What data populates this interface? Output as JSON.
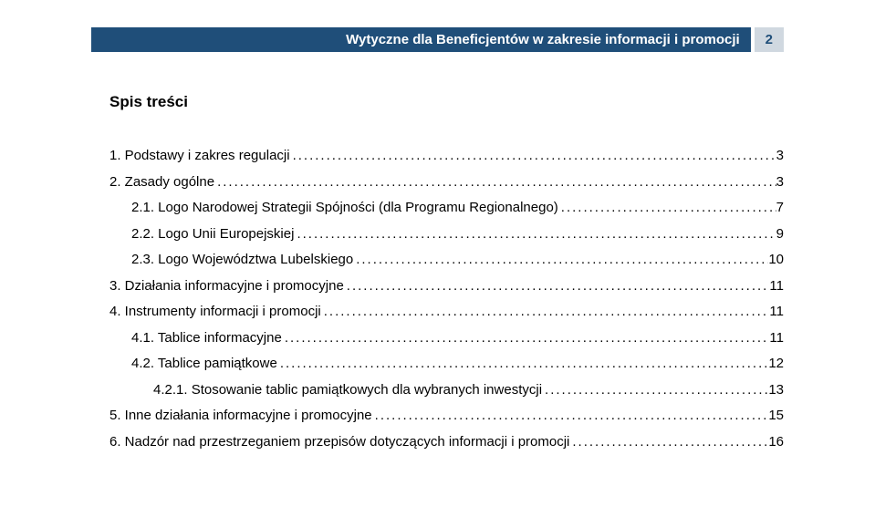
{
  "header": {
    "title": "Wytyczne dla Beneficjentów w zakresie informacji i promocji",
    "page_number": "2",
    "bar_bg": "#1f4e79",
    "bar_text_color": "#ffffff",
    "page_bg": "#d0d8e0",
    "page_text_color": "#1f4e79"
  },
  "toc": {
    "title": "Spis treści",
    "entries": [
      {
        "level": 1,
        "text": "1. Podstawy i zakres regulacji",
        "page": "3"
      },
      {
        "level": 1,
        "text": "2. Zasady ogólne",
        "page": "3"
      },
      {
        "level": 2,
        "text": "2.1. Logo Narodowej Strategii Spójności (dla Programu Regionalnego)",
        "page": "7"
      },
      {
        "level": 2,
        "text": "2.2. Logo Unii Europejskiej",
        "page": "9"
      },
      {
        "level": 2,
        "text": "2.3. Logo Województwa Lubelskiego",
        "page": "10"
      },
      {
        "level": 1,
        "text": "3. Działania informacyjne i promocyjne",
        "page": "11"
      },
      {
        "level": 1,
        "text": "4. Instrumenty informacji i promocji",
        "page": "11"
      },
      {
        "level": 2,
        "text": "4.1. Tablice informacyjne",
        "page": "11"
      },
      {
        "level": 2,
        "text": "4.2. Tablice pamiątkowe",
        "page": "12"
      },
      {
        "level": 3,
        "text": "4.2.1. Stosowanie tablic pamiątkowych dla wybranych inwestycji",
        "page": "13"
      },
      {
        "level": 1,
        "text": "5. Inne działania informacyjne i promocyjne",
        "page": "15"
      },
      {
        "level": 1,
        "text": "6. Nadzór nad przestrzeganiem przepisów dotyczących informacji i promocji",
        "page": "16"
      }
    ]
  },
  "styles": {
    "body_font_family": "Arial",
    "body_font_size_pt": 11,
    "title_font_size_pt": 13,
    "line_height": 1.9,
    "text_color": "#000000",
    "background_color": "#ffffff"
  }
}
